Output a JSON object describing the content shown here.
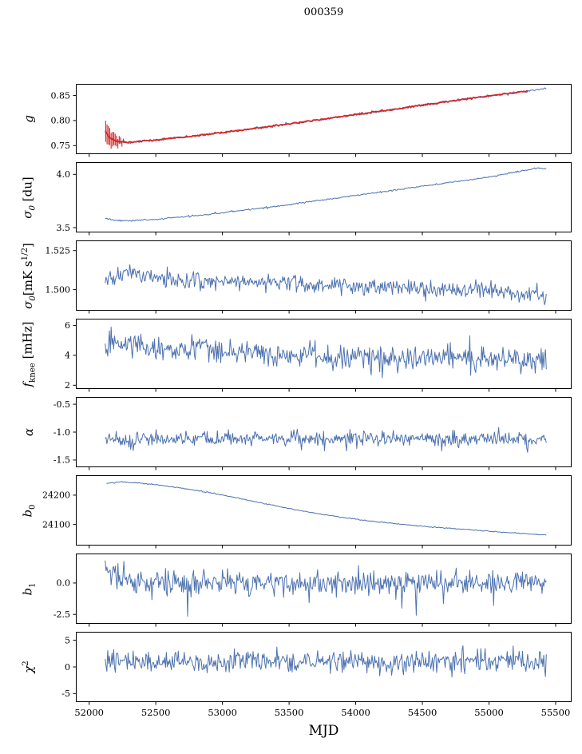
{
  "title": "000359",
  "xlabel": "MJD",
  "colors": {
    "primary": "#4c72b0",
    "fit": "#d62728",
    "axes": "#000000"
  },
  "chart_data": {
    "type": "line",
    "title": "000359",
    "xlabel": "MJD",
    "xlim": [
      51900,
      55620
    ],
    "x_range_data": [
      52120,
      55430
    ],
    "grid": false,
    "legend": "none",
    "xticks": [
      {
        "v": 52000,
        "label": "52000"
      },
      {
        "v": 52500,
        "label": "52500"
      },
      {
        "v": 53000,
        "label": "53000"
      },
      {
        "v": 53500,
        "label": "53500"
      },
      {
        "v": 54000,
        "label": "54000"
      },
      {
        "v": 54500,
        "label": "54500"
      },
      {
        "v": 55000,
        "label": "55000"
      },
      {
        "v": 55500,
        "label": "55500"
      }
    ],
    "panels": [
      {
        "id": "g",
        "ylabel_text": "g",
        "ylabel_parts": [
          {
            "t": "g",
            "i": 1
          }
        ],
        "ylim": [
          0.733,
          0.873
        ],
        "yticks": [
          {
            "v": 0.75,
            "label": "0.75"
          },
          {
            "v": 0.8,
            "label": "0.80"
          },
          {
            "v": 0.85,
            "label": "0.85"
          }
        ],
        "series": [
          {
            "name": "g-data",
            "color": "#4c72b0",
            "lw": 1.0,
            "noise": 0.0012,
            "n": 450,
            "seed": 101,
            "x0": 52120,
            "x1": 55430,
            "trend": [
              [
                52120,
                0.78
              ],
              [
                52150,
                0.766
              ],
              [
                52210,
                0.758
              ],
              [
                52320,
                0.757
              ],
              [
                52500,
                0.7615
              ],
              [
                52750,
                0.768
              ],
              [
                53000,
                0.776
              ],
              [
                53250,
                0.7845
              ],
              [
                53500,
                0.7935
              ],
              [
                53750,
                0.8025
              ],
              [
                54000,
                0.8115
              ],
              [
                54250,
                0.821
              ],
              [
                54500,
                0.8305
              ],
              [
                54750,
                0.84
              ],
              [
                55000,
                0.849
              ],
              [
                55200,
                0.8555
              ],
              [
                55430,
                0.8635
              ]
            ]
          },
          {
            "name": "g-fit",
            "color": "#d62728",
            "lw": 1.8,
            "noise": 0.0008,
            "n": 340,
            "seed": 102,
            "x0": 52122,
            "x1": 55290,
            "trend": [
              [
                52120,
                0.78
              ],
              [
                52150,
                0.766
              ],
              [
                52210,
                0.758
              ],
              [
                52320,
                0.757
              ],
              [
                52500,
                0.7615
              ],
              [
                52750,
                0.768
              ],
              [
                53000,
                0.776
              ],
              [
                53250,
                0.7845
              ],
              [
                53500,
                0.7935
              ],
              [
                53750,
                0.8025
              ],
              [
                54000,
                0.8115
              ],
              [
                54250,
                0.821
              ],
              [
                54500,
                0.8305
              ],
              [
                54750,
                0.84
              ],
              [
                55000,
                0.849
              ],
              [
                55200,
                0.8555
              ],
              [
                55430,
                0.8635
              ]
            ],
            "errorbars": {
              "x0": 52124,
              "x1": 52256,
              "count": 14,
              "a0": 0.021,
              "a1": 0.004
            }
          }
        ]
      },
      {
        "id": "sigma0-du",
        "ylabel_text": "σ0 [du]",
        "ylabel_parts": [
          {
            "t": "σ",
            "i": 1
          },
          {
            "sub": "0",
            "i": 1
          },
          {
            "t": " [du]"
          }
        ],
        "ylim": [
          3.455,
          4.115
        ],
        "yticks": [
          {
            "v": 3.5,
            "label": "3.5"
          },
          {
            "v": 4.0,
            "label": "4.0"
          }
        ],
        "series": [
          {
            "name": "sigma0-du-data",
            "color": "#4c72b0",
            "lw": 1.0,
            "noise": 0.0035,
            "n": 450,
            "seed": 201,
            "x0": 52120,
            "x1": 55430,
            "trend": [
              [
                52120,
                3.588
              ],
              [
                52180,
                3.57
              ],
              [
                52300,
                3.564
              ],
              [
                52450,
                3.574
              ],
              [
                52650,
                3.594
              ],
              [
                52900,
                3.625
              ],
              [
                53150,
                3.662
              ],
              [
                53400,
                3.7
              ],
              [
                53650,
                3.742
              ],
              [
                53900,
                3.785
              ],
              [
                54150,
                3.828
              ],
              [
                54400,
                3.872
              ],
              [
                54650,
                3.915
              ],
              [
                54900,
                3.958
              ],
              [
                55100,
                3.998
              ],
              [
                55250,
                4.035
              ],
              [
                55370,
                4.058
              ],
              [
                55430,
                4.052
              ]
            ]
          }
        ]
      },
      {
        "id": "sigma0-mk",
        "ylabel_text": "σ0[mK s1/2]",
        "ylabel_parts": [
          {
            "t": "σ",
            "i": 1
          },
          {
            "sub": "0",
            "i": 1
          },
          {
            "t": "[mK s"
          },
          {
            "sup": "1/2"
          },
          {
            "t": "]"
          }
        ],
        "ylim": [
          1.4865,
          1.5315
        ],
        "yticks": [
          {
            "v": 1.5,
            "label": "1.500"
          },
          {
            "v": 1.525,
            "label": "1.525"
          }
        ],
        "series": [
          {
            "name": "sigma0-mk-data",
            "color": "#4c72b0",
            "lw": 1.0,
            "noise": 0.0027,
            "n": 520,
            "seed": 301,
            "x0": 52120,
            "x1": 55430,
            "trend": [
              [
                52120,
                1.5045
              ],
              [
                52220,
                1.5085
              ],
              [
                52320,
                1.5105
              ],
              [
                52450,
                1.5075
              ],
              [
                52600,
                1.5065
              ],
              [
                52900,
                1.5055
              ],
              [
                53200,
                1.5048
              ],
              [
                53500,
                1.504
              ],
              [
                53800,
                1.503
              ],
              [
                54100,
                1.5018
              ],
              [
                54400,
                1.5008
              ],
              [
                54700,
                1.5003
              ],
              [
                55000,
                1.4995
              ],
              [
                55200,
                1.4985
              ],
              [
                55430,
                1.4945
              ]
            ],
            "spike": {
              "prob": 0.008,
              "min": -0.007,
              "max": 0.007
            }
          }
        ]
      },
      {
        "id": "fknee",
        "ylabel_text": "fknee [mHz]",
        "ylabel_parts": [
          {
            "t": "f",
            "i": 1
          },
          {
            "sub": "knee"
          },
          {
            "t": " [mHz]"
          }
        ],
        "ylim": [
          1.75,
          6.45
        ],
        "yticks": [
          {
            "v": 2,
            "label": "2"
          },
          {
            "v": 4,
            "label": "4"
          },
          {
            "v": 6,
            "label": "6"
          }
        ],
        "series": [
          {
            "name": "fknee-data",
            "color": "#4c72b0",
            "lw": 1.0,
            "noise": 0.42,
            "n": 520,
            "seed": 401,
            "x0": 52120,
            "x1": 55430,
            "trend": [
              [
                52120,
                4.75
              ],
              [
                52300,
                4.62
              ],
              [
                52600,
                4.45
              ],
              [
                52900,
                4.32
              ],
              [
                53200,
                4.18
              ],
              [
                53500,
                4.05
              ],
              [
                53800,
                3.97
              ],
              [
                54100,
                3.9
              ],
              [
                54400,
                3.85
              ],
              [
                54700,
                3.8
              ],
              [
                55000,
                3.75
              ],
              [
                55430,
                3.72
              ]
            ],
            "spike": {
              "prob": 0.02,
              "min": -1.1,
              "max": 1.5
            }
          }
        ]
      },
      {
        "id": "alpha",
        "ylabel_text": "α",
        "ylabel_parts": [
          {
            "t": "α",
            "i": 1
          }
        ],
        "ylim": [
          -1.63,
          -0.37
        ],
        "yticks": [
          {
            "v": -1.5,
            "label": "-1.5"
          },
          {
            "v": -1.0,
            "label": "-1.0"
          },
          {
            "v": -0.5,
            "label": "-0.5"
          }
        ],
        "series": [
          {
            "name": "alpha-data",
            "color": "#4c72b0",
            "lw": 1.0,
            "noise": 0.068,
            "n": 520,
            "seed": 501,
            "x0": 52120,
            "x1": 55430,
            "trend": [
              [
                52120,
                -1.128
              ],
              [
                53000,
                -1.12
              ],
              [
                54000,
                -1.115
              ],
              [
                55430,
                -1.122
              ]
            ],
            "spike": {
              "prob": 0.012,
              "min": -0.22,
              "max": 0.22
            }
          }
        ]
      },
      {
        "id": "b0",
        "ylabel_text": "b0",
        "ylabel_parts": [
          {
            "t": "b",
            "i": 1
          },
          {
            "sub": "0"
          }
        ],
        "ylim": [
          24028,
          24268
        ],
        "yticks": [
          {
            "v": 24100,
            "label": "24100"
          },
          {
            "v": 24200,
            "label": "24200"
          }
        ],
        "series": [
          {
            "name": "b0-data",
            "color": "#4c72b0",
            "lw": 1.0,
            "noise": 0.9,
            "n": 450,
            "seed": 601,
            "x0": 52130,
            "x1": 55430,
            "trend": [
              [
                52130,
                24240
              ],
              [
                52230,
                24245
              ],
              [
                52330,
                24243
              ],
              [
                52450,
                24238
              ],
              [
                52600,
                24230
              ],
              [
                52750,
                24220
              ],
              [
                52900,
                24209
              ],
              [
                53050,
                24196
              ],
              [
                53200,
                24182
              ],
              [
                53350,
                24168
              ],
              [
                53500,
                24154
              ],
              [
                53650,
                24142
              ],
              [
                53800,
                24131
              ],
              [
                53950,
                24121
              ],
              [
                54100,
                24112
              ],
              [
                54250,
                24105
              ],
              [
                54400,
                24098
              ],
              [
                54550,
                24092
              ],
              [
                54700,
                24087
              ],
              [
                54850,
                24082
              ],
              [
                55000,
                24077
              ],
              [
                55150,
                24072
              ],
              [
                55300,
                24068
              ],
              [
                55430,
                24064
              ]
            ]
          }
        ]
      },
      {
        "id": "b1",
        "ylabel_text": "b1",
        "ylabel_parts": [
          {
            "t": "b",
            "i": 1
          },
          {
            "sub": "1"
          }
        ],
        "ylim": [
          -3.25,
          2.35
        ],
        "yticks": [
          {
            "v": -2.5,
            "label": "-2.5"
          },
          {
            "v": 0.0,
            "label": "0.0"
          }
        ],
        "series": [
          {
            "name": "b1-data",
            "color": "#4c72b0",
            "lw": 1.0,
            "noise": 0.5,
            "n": 520,
            "seed": 701,
            "x0": 52120,
            "x1": 55430,
            "trend": [
              [
                52120,
                1.5
              ],
              [
                52150,
                1.0
              ],
              [
                52200,
                0.55
              ],
              [
                52300,
                0.2
              ],
              [
                52450,
                0.05
              ],
              [
                53000,
                0.0
              ],
              [
                54000,
                -0.02
              ],
              [
                55430,
                -0.02
              ]
            ],
            "spike": {
              "prob": 0.018,
              "min": -2.2,
              "max": 1.3
            }
          }
        ]
      },
      {
        "id": "chi2",
        "ylabel_text": "χ2",
        "ylabel_parts": [
          {
            "t": "χ",
            "i": 1
          },
          {
            "sup": "2"
          }
        ],
        "ylim": [
          -6.6,
          6.6
        ],
        "yticks": [
          {
            "v": -5,
            "label": "-5"
          },
          {
            "v": 0,
            "label": "0"
          },
          {
            "v": 5,
            "label": "5"
          }
        ],
        "series": [
          {
            "name": "chi2-data",
            "color": "#4c72b0",
            "lw": 1.0,
            "noise": 1.05,
            "n": 520,
            "seed": 801,
            "x0": 52120,
            "x1": 55430,
            "trend": [
              [
                52120,
                1.0
              ],
              [
                55430,
                1.0
              ]
            ],
            "spike": {
              "prob": 0.015,
              "min": -3.2,
              "max": 3.0
            }
          }
        ]
      }
    ]
  }
}
